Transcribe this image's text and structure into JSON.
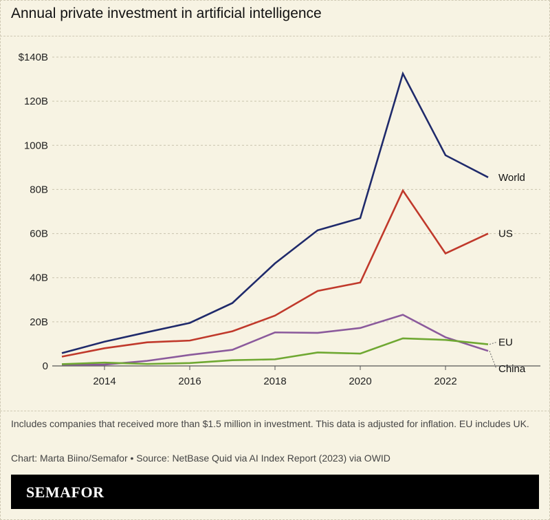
{
  "header": {
    "title": "Annual private investment in artificial intelligence"
  },
  "footer": {
    "note": "Includes companies that received more than $1.5 million in investment. This data is adjusted for inflation. EU includes UK.",
    "credit": "Chart: Marta Biino/Semafor • Source: NetBase Quid via AI Index Report (2023) via OWID",
    "brand": "SEMAFOR"
  },
  "chart_data": {
    "type": "line",
    "title": "Annual private investment in artificial intelligence",
    "xlabel": "",
    "ylabel": "",
    "x": [
      2013,
      2014,
      2015,
      2016,
      2017,
      2018,
      2019,
      2020,
      2021,
      2022,
      2023
    ],
    "xlim": [
      2013,
      2023
    ],
    "ylim": [
      0,
      140
    ],
    "x_ticks": [
      2014,
      2016,
      2018,
      2020,
      2022
    ],
    "x_tick_labels": [
      "2014",
      "2016",
      "2018",
      "2020",
      "2022"
    ],
    "y_ticks": [
      0,
      20,
      40,
      60,
      80,
      100,
      120,
      140
    ],
    "y_tick_labels": [
      "0",
      "20B",
      "40B",
      "60B",
      "80B",
      "100B",
      "120B",
      "$140B"
    ],
    "grid": "horizontal dashed",
    "legend": "direct labels at line ends",
    "series": [
      {
        "name": "World",
        "color": "#1f2a6b",
        "values": [
          5.8,
          11,
          15.3,
          19.5,
          28.5,
          46.5,
          61.5,
          67,
          132.5,
          95.5,
          85.5
        ]
      },
      {
        "name": "US",
        "color": "#c0392b",
        "values": [
          4.2,
          8,
          10.7,
          11.5,
          15.7,
          22.8,
          34,
          37.8,
          79.5,
          51,
          60
        ]
      },
      {
        "name": "China",
        "color": "#8b5a9c",
        "values": [
          0.6,
          0.6,
          2.3,
          5,
          7.3,
          15.2,
          15,
          17.2,
          23.2,
          13,
          6.8
        ]
      },
      {
        "name": "EU",
        "color": "#6fa832",
        "values": [
          0.8,
          1.5,
          0.9,
          1.3,
          2.6,
          3,
          6.1,
          5.6,
          12.5,
          11.8,
          9.8
        ]
      }
    ]
  }
}
